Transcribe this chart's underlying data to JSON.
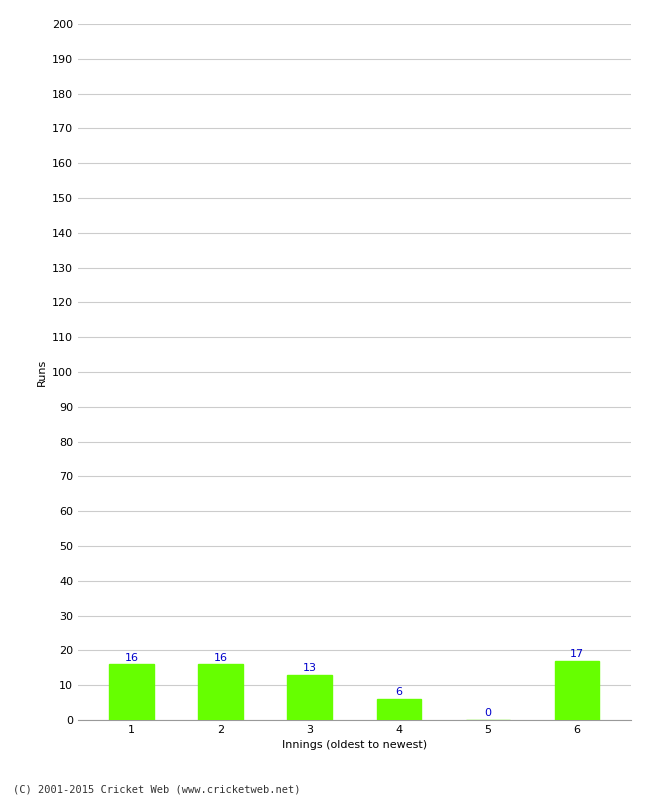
{
  "categories": [
    "1",
    "2",
    "3",
    "4",
    "5",
    "6"
  ],
  "values": [
    16,
    16,
    13,
    6,
    0,
    17
  ],
  "bar_color": "#66ff00",
  "bar_edge_color": "#66ff00",
  "ylabel": "Runs",
  "xlabel": "Innings (oldest to newest)",
  "ylim": [
    0,
    200
  ],
  "yticks": [
    0,
    10,
    20,
    30,
    40,
    50,
    60,
    70,
    80,
    90,
    100,
    110,
    120,
    130,
    140,
    150,
    160,
    170,
    180,
    190,
    200
  ],
  "label_color": "#0000cc",
  "label_fontsize": 8,
  "tick_fontsize": 8,
  "axis_label_fontsize": 8,
  "footer": "(C) 2001-2015 Cricket Web (www.cricketweb.net)",
  "background_color": "#ffffff",
  "grid_color": "#cccccc"
}
